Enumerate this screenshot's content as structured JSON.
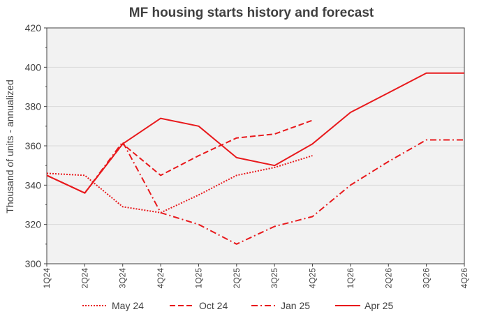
{
  "chart_data": {
    "type": "line",
    "title": "MF housing starts history and forecast",
    "xlabel": "",
    "ylabel": "Thousand of units - annualized",
    "categories": [
      "1Q24",
      "2Q24",
      "3Q24",
      "4Q24",
      "1Q25",
      "2Q25",
      "3Q25",
      "4Q25",
      "1Q26",
      "2Q26",
      "3Q26",
      "4Q26"
    ],
    "ylim": [
      300,
      420
    ],
    "yticks": [
      300,
      320,
      340,
      360,
      380,
      400,
      420
    ],
    "grid": true,
    "legend_position": "bottom",
    "series": [
      {
        "name": "May 24",
        "style": "dotted",
        "color": "#e8191c",
        "values": [
          346,
          345,
          329,
          326,
          335,
          345,
          349,
          355,
          null,
          null,
          null,
          null
        ]
      },
      {
        "name": "Oct 24",
        "style": "dashed",
        "color": "#e8191c",
        "values": [
          345,
          336,
          361,
          345,
          355,
          364,
          366,
          373,
          null,
          null,
          null,
          null
        ]
      },
      {
        "name": "Jan 25",
        "style": "dashdot",
        "color": "#e8191c",
        "values": [
          345,
          336,
          362,
          326,
          320,
          310,
          319,
          324,
          340,
          352,
          363,
          363
        ]
      },
      {
        "name": "Apr 25",
        "style": "solid",
        "color": "#e8191c",
        "values": [
          345,
          336,
          361,
          374,
          370,
          354,
          350,
          361,
          377,
          387,
          397,
          397
        ]
      }
    ]
  }
}
